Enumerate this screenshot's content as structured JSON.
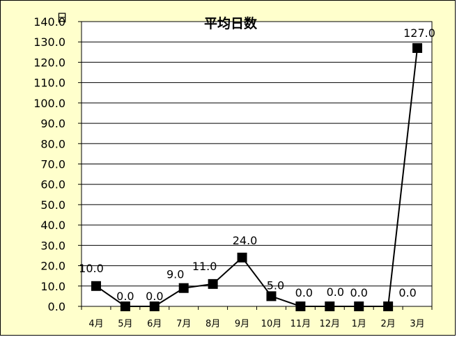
{
  "chart_data": {
    "type": "line",
    "title": "平均日数",
    "ylabel": "日",
    "xlabel": "",
    "categories": [
      "4月",
      "5月",
      "6月",
      "7月",
      "8月",
      "9月",
      "10月",
      "11月",
      "12月",
      "1月",
      "2月",
      "3月"
    ],
    "series": [
      {
        "values": [
          10.0,
          0.0,
          0.0,
          9.0,
          11.0,
          24.0,
          5.0,
          0.0,
          0.0,
          0.0,
          0.0,
          127.0
        ]
      }
    ],
    "data_labels": [
      "10.0",
      "0.0",
      "0.0",
      "9.0",
      "11.0",
      "24.0",
      "5.0",
      "0.0",
      "0.0",
      "0.0",
      "0.0",
      "127.0"
    ],
    "ylim": [
      0,
      140
    ],
    "ytick_step": 10,
    "ytick_labels": [
      "0.0",
      "10.0",
      "20.0",
      "30.0",
      "40.0",
      "50.0",
      "60.0",
      "70.0",
      "80.0",
      "90.0",
      "100.0",
      "110.0",
      "120.0",
      "130.0",
      "140.0"
    ],
    "grid": true,
    "legend": "none",
    "colors": {
      "background": "#ffffcc",
      "plot_area": "#ffffff",
      "line": "#000000",
      "marker": "#000000",
      "grid": "#000000"
    }
  }
}
